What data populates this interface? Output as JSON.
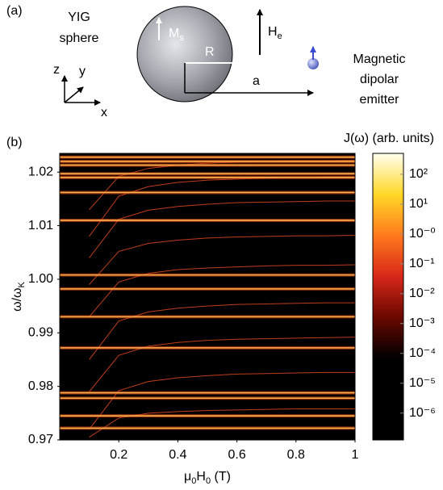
{
  "panel_a": {
    "label": "(a)",
    "sphere_label": [
      "YIG",
      "sphere"
    ],
    "magnetization": {
      "main": "M",
      "sub": "s"
    },
    "radius": "R",
    "field": {
      "main": "H",
      "sub": "e"
    },
    "distance": "a",
    "emitter_label": [
      "Magnetic",
      "dipolar",
      "emitter"
    ],
    "axes": {
      "z": "z",
      "y": "y",
      "x": "x"
    }
  },
  "chart_data": {
    "type": "heatmap",
    "label": "(b)",
    "x_label": [
      {
        "text": "μ"
      },
      {
        "text": "0",
        "sub": true
      },
      {
        "text": "H"
      },
      {
        "text": "0",
        "sub": true
      },
      {
        "text": " (T)"
      }
    ],
    "y_label": [
      {
        "text": "ω/ω"
      },
      {
        "text": "K",
        "sub": true
      }
    ],
    "colorbar_label": "J(ω) (arb. units)",
    "xlim": [
      0,
      1
    ],
    "xticks": [
      0.2,
      0.4,
      0.6,
      0.8,
      1
    ],
    "ylim": [
      0.97,
      1.0235
    ],
    "yticks": [
      0.97,
      0.98,
      0.99,
      {
        "value": 1,
        "label": "1.00"
      },
      1.01,
      1.02
    ],
    "grid": false,
    "background": "#000000",
    "band_color": "#ffb347",
    "curve_color": "#e0481e",
    "bands": [
      1.0228,
      1.022,
      1.0213,
      1.0197,
      1.019,
      1.0162,
      1.011,
      1.0008,
      0.9982,
      0.993,
      0.9872,
      0.9788,
      0.9778,
      0.9745,
      0.9722
    ],
    "x": [
      0.1,
      0.2,
      0.3,
      0.4,
      0.5,
      0.6,
      0.7,
      0.8,
      0.9,
      1.0
    ],
    "series": [
      {
        "values": [
          1.013,
          1.0192,
          1.0207,
          1.0213,
          1.0217,
          1.0219,
          1.022,
          1.0221,
          1.0221,
          1.0222
        ]
      },
      {
        "values": [
          1.008,
          1.0155,
          1.0173,
          1.0181,
          1.0185,
          1.0187,
          1.0189,
          1.019,
          1.0191,
          1.0191
        ]
      },
      {
        "values": [
          1.004,
          1.0112,
          1.0129,
          1.0136,
          1.014,
          1.0143,
          1.0144,
          1.0145,
          1.0146,
          1.0146
        ]
      },
      {
        "values": [
          0.999,
          1.0052,
          1.0067,
          1.0073,
          1.0077,
          1.0079,
          1.008,
          1.0081,
          1.0081,
          1.0082
        ]
      },
      {
        "values": [
          0.993,
          0.9995,
          1.0011,
          1.0018,
          1.0021,
          1.0023,
          1.0025,
          1.0026,
          1.0026,
          1.0027
        ]
      },
      {
        "values": [
          0.985,
          0.9922,
          0.9939,
          0.9946,
          0.995,
          0.9953,
          0.9954,
          0.9955,
          0.9956,
          0.9956
        ]
      },
      {
        "values": [
          0.979,
          0.9858,
          0.9875,
          0.9882,
          0.9886,
          0.9888,
          0.9889,
          0.989,
          0.9891,
          0.9892
        ]
      },
      {
        "values": [
          0.972,
          0.9792,
          0.9809,
          0.9816,
          0.982,
          0.9823,
          0.9824,
          0.9825,
          0.9826,
          0.9826
        ]
      },
      {
        "values": [
          0.9705,
          0.9741,
          0.975,
          0.9753,
          0.9755,
          0.9756,
          0.9757,
          0.9758,
          0.9758,
          0.9758
        ]
      }
    ],
    "colorscale_log": true,
    "clim": [
      1.26e-07,
      500
    ],
    "colormap": [
      "#000000",
      "#000000",
      "#000000",
      "#6a0800",
      "#d8281a",
      "#ff7a1c",
      "#ffd827",
      "#fffff0"
    ],
    "cticks": [
      {
        "value": 100,
        "label": "10²"
      },
      {
        "value": 10,
        "label": "10¹"
      },
      {
        "value": 1,
        "label": "10⁻⁰"
      },
      {
        "value": 0.1,
        "label": "10⁻¹"
      },
      {
        "value": 0.01,
        "label": "10⁻²"
      },
      {
        "value": 0.001,
        "label": "10⁻³"
      },
      {
        "value": 0.0001,
        "label": "10⁻⁴"
      },
      {
        "value": 1e-05,
        "label": "10⁻⁵"
      },
      {
        "value": 1e-06,
        "label": "10⁻⁶"
      }
    ]
  }
}
